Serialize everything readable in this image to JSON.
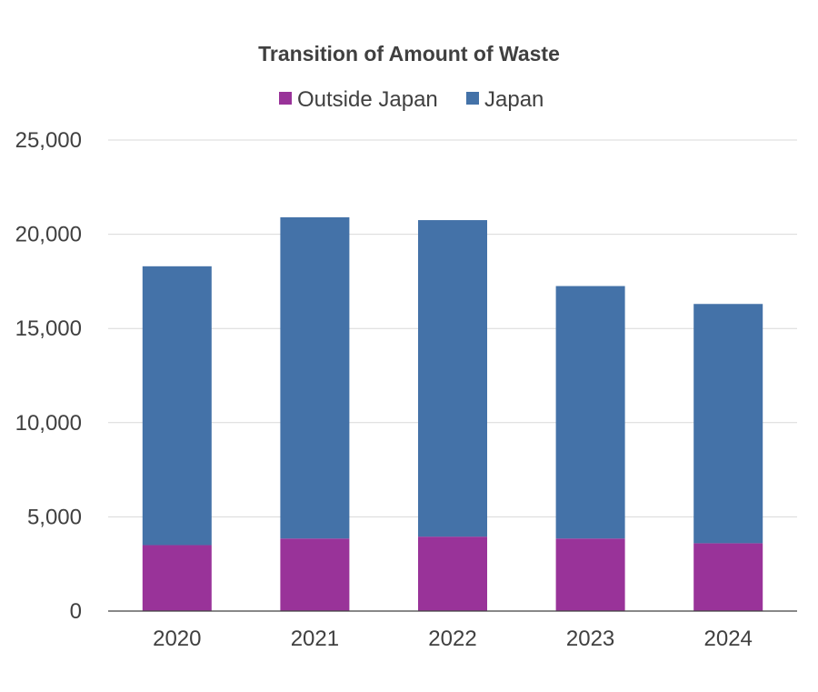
{
  "chart_data": {
    "type": "bar",
    "stacked": true,
    "title": "Transition of Amount of Waste",
    "xlabel": "",
    "ylabel": "",
    "categories": [
      "2020",
      "2021",
      "2022",
      "2023",
      "2024"
    ],
    "series": [
      {
        "name": "Outside Japan",
        "color": "#993399",
        "values": [
          3500,
          3850,
          3950,
          3850,
          3600
        ]
      },
      {
        "name": "Japan",
        "color": "#4472a8",
        "values": [
          14800,
          17050,
          16800,
          13400,
          12700
        ]
      }
    ],
    "ylim": [
      0,
      25000
    ],
    "yticks": [
      0,
      5000,
      10000,
      15000,
      20000,
      25000
    ],
    "ytick_labels": [
      "0",
      "5,000",
      "10,000",
      "15,000",
      "20,000",
      "25,000"
    ],
    "grid": true,
    "legend": "top-center"
  }
}
